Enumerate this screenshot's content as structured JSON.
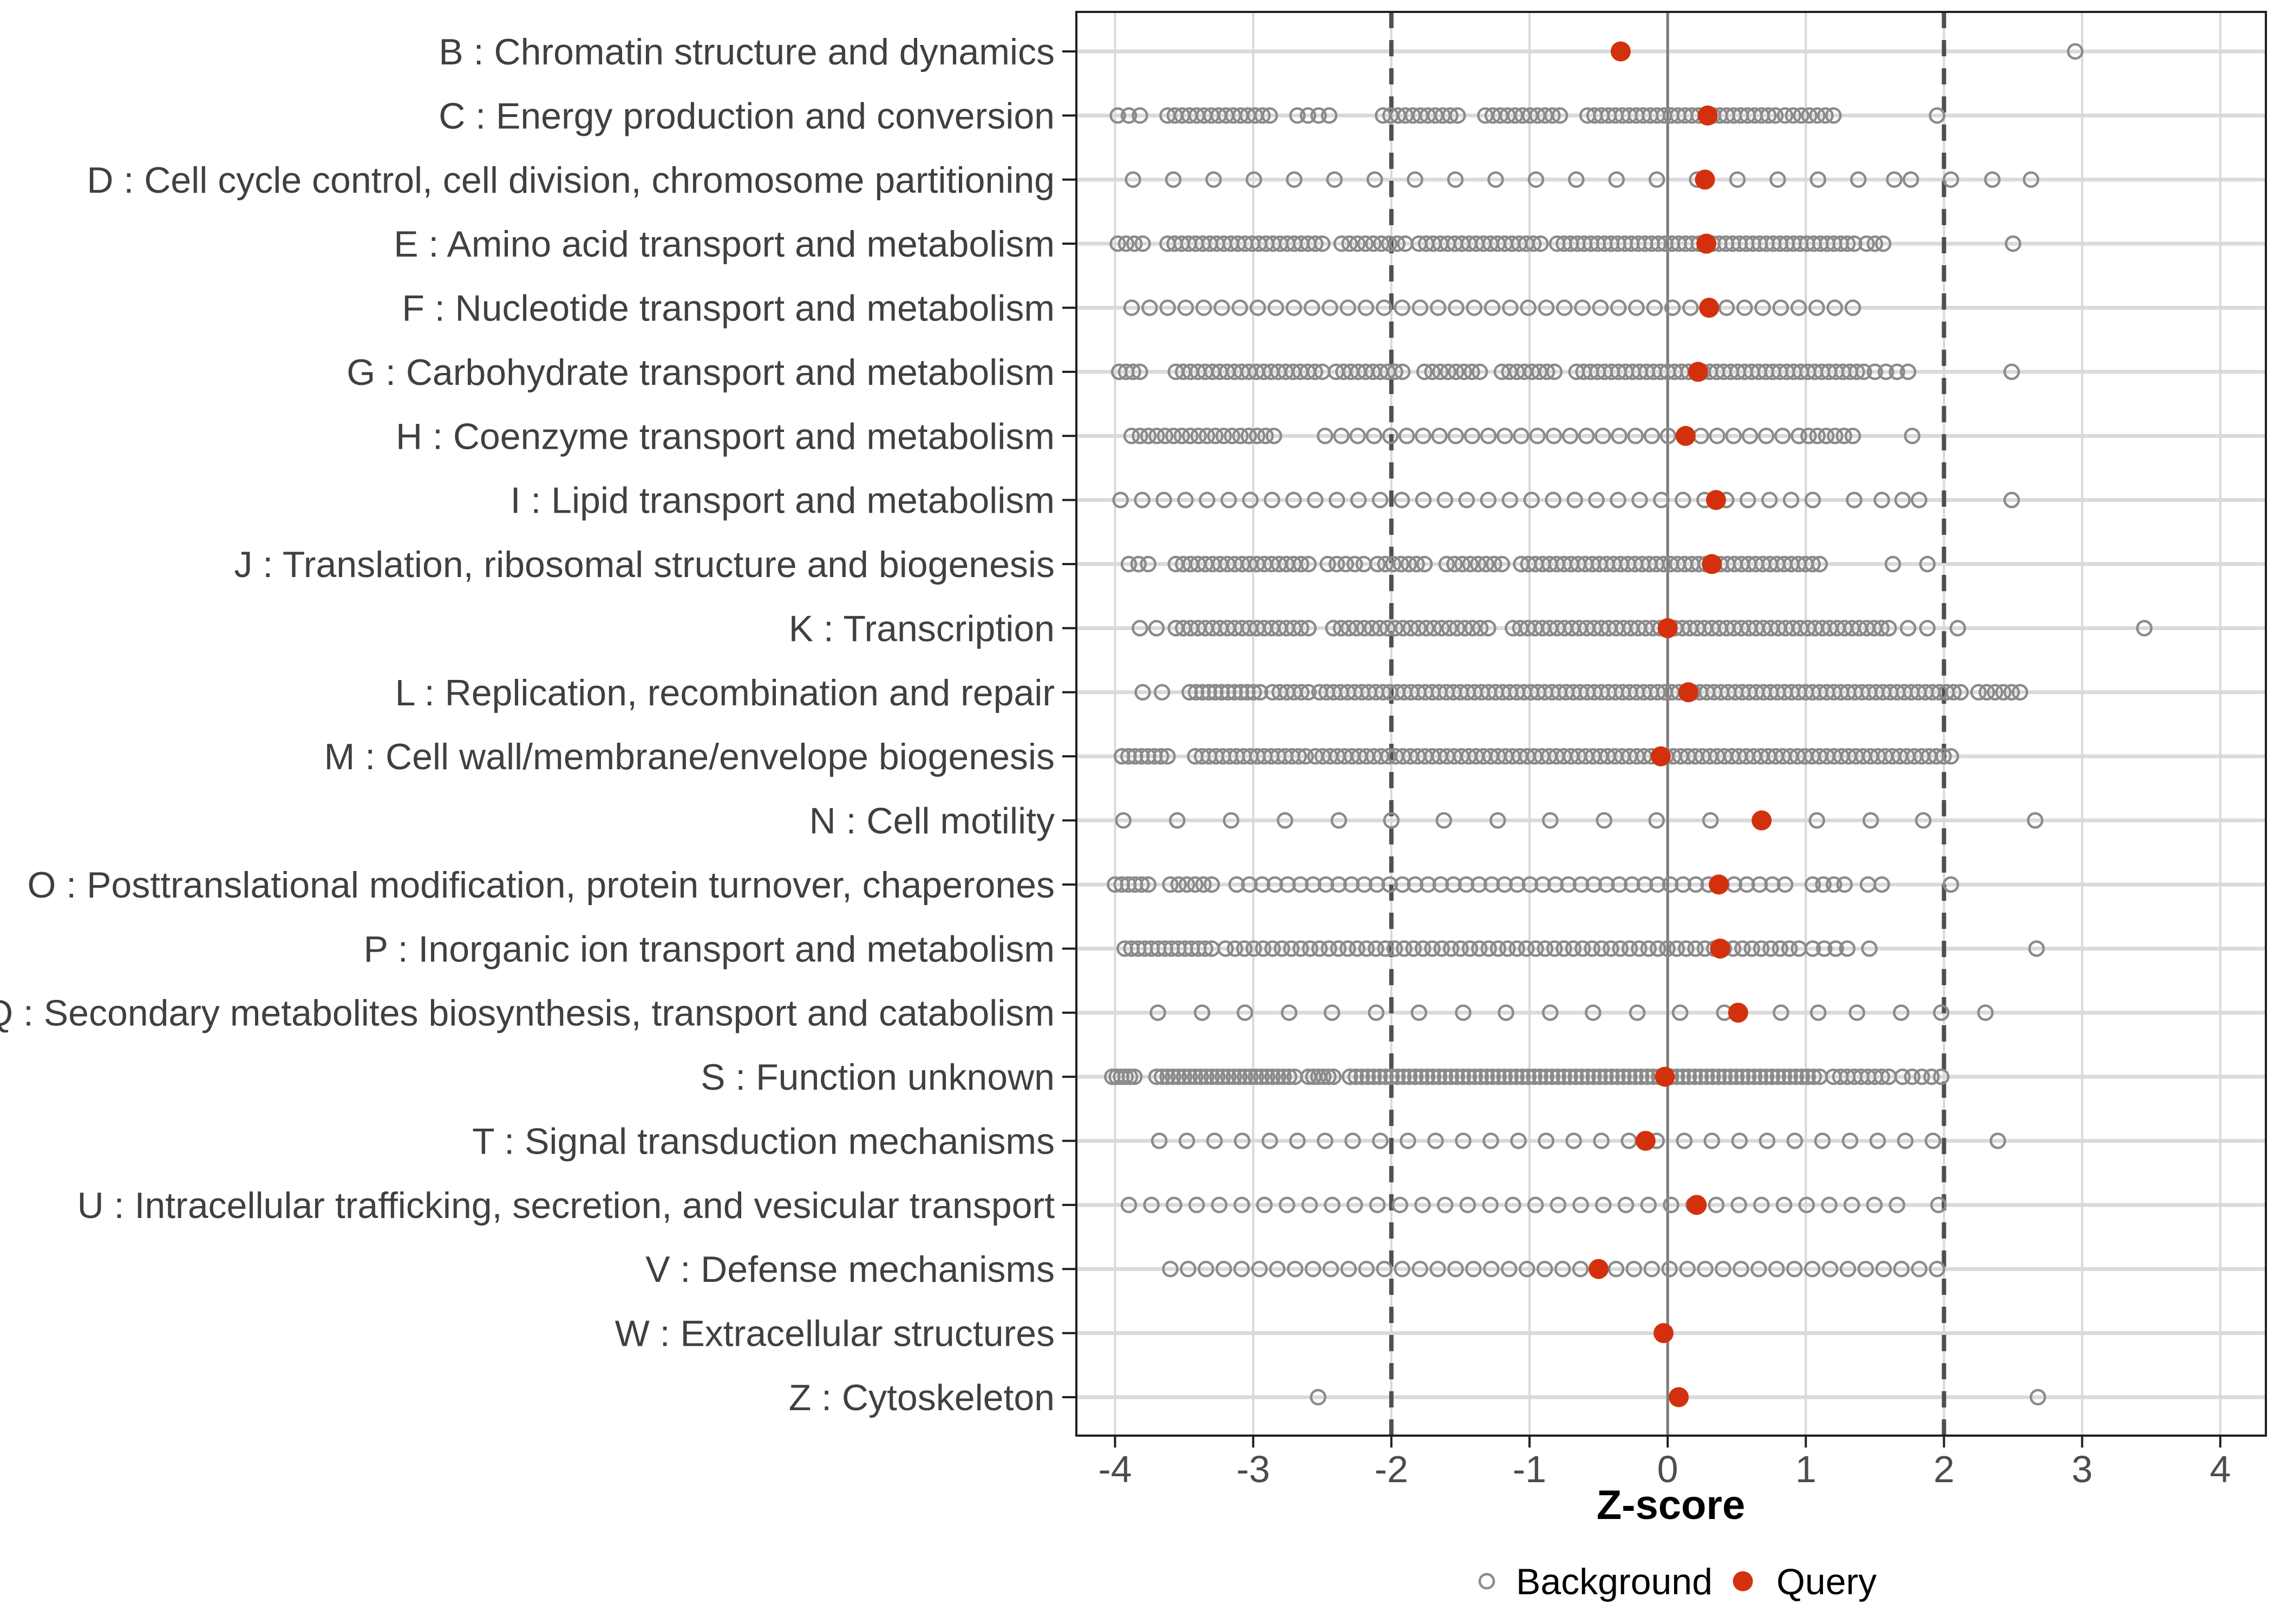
{
  "chart_data": {
    "type": "scatter",
    "title": "",
    "xlabel": "Z-score",
    "x_ticks": [
      -4,
      -3,
      -2,
      -1,
      0,
      1,
      2,
      3,
      4
    ],
    "x_domain": [
      -4.28,
      4.33
    ],
    "grid": true,
    "reference_lines": {
      "zero": 0,
      "dashed": [
        -2,
        2
      ]
    },
    "legend": {
      "background": "Background",
      "query": "Query"
    },
    "legend_position": "bottom",
    "colors": {
      "query": "#d3310d",
      "background_stroke": "#8b8b8b",
      "grid": "#dadada",
      "vgrid": "#d8d8d8",
      "zero_line": "#7a7a7a",
      "dashed_line": "#4f4f4f",
      "panel_border": "#1f1f1f",
      "x_tick_text": "#4d4d4d",
      "y_label_text": "#404040"
    },
    "categories": [
      {
        "label": "B : Chromatin structure and dynamics",
        "query": -0.34,
        "bg_segments": [],
        "bg_points": [
          2.95
        ]
      },
      {
        "label": "C : Energy production and conversion",
        "query": 0.29,
        "bg_segments": [
          [
            -3.98,
            -3.82,
            3
          ],
          [
            -3.62,
            -2.88,
            15
          ],
          [
            -2.68,
            -2.45,
            4
          ],
          [
            -2.06,
            -1.52,
            11
          ],
          [
            -1.32,
            -0.78,
            11
          ],
          [
            -0.58,
            0.78,
            28
          ],
          [
            0.85,
            1.2,
            7
          ]
        ],
        "bg_points": [
          1.95
        ]
      },
      {
        "label": "D : Cell cycle control, cell division, chromosome partitioning",
        "query": 0.27,
        "bg_segments": [
          [
            -3.87,
            1.38,
            19
          ]
        ],
        "bg_points": [
          1.64,
          1.76,
          2.05,
          2.35,
          2.63
        ]
      },
      {
        "label": "E : Amino acid transport and metabolism",
        "query": 0.28,
        "bg_segments": [
          [
            -3.98,
            -3.8,
            4
          ],
          [
            -3.62,
            -2.5,
            23
          ],
          [
            -2.36,
            -1.9,
            9
          ],
          [
            -1.8,
            -0.92,
            18
          ],
          [
            -0.8,
            1.35,
            45
          ],
          [
            1.44,
            1.56,
            3
          ]
        ],
        "bg_points": [
          2.5
        ]
      },
      {
        "label": "F : Nucleotide transport and metabolism",
        "query": 0.3,
        "bg_segments": [
          [
            -3.88,
            1.34,
            41
          ]
        ],
        "bg_points": []
      },
      {
        "label": "G : Carbohydrate transport and metabolism",
        "query": 0.22,
        "bg_segments": [
          [
            -3.97,
            -3.82,
            4
          ],
          [
            -3.56,
            -2.5,
            21
          ],
          [
            -2.4,
            -1.92,
            10
          ],
          [
            -1.76,
            -1.36,
            8
          ],
          [
            -1.2,
            -0.82,
            8
          ],
          [
            -0.66,
            1.42,
            42
          ],
          [
            1.5,
            1.74,
            4
          ]
        ],
        "bg_points": [
          2.49
        ]
      },
      {
        "label": "H : Coenzyme transport and metabolism",
        "query": 0.13,
        "bg_segments": [
          [
            -3.88,
            -2.85,
            18
          ],
          [
            -2.48,
            0.95,
            30
          ],
          [
            1.02,
            1.34,
            6
          ]
        ],
        "bg_points": [
          1.77
        ]
      },
      {
        "label": "I : Lipid transport and metabolism",
        "query": 0.35,
        "bg_segments": [
          [
            -3.96,
            1.05,
            33
          ]
        ],
        "bg_points": [
          1.35,
          1.55,
          1.7,
          1.82,
          2.49
        ]
      },
      {
        "label": "J : Translation, ribosomal structure and biogenesis",
        "query": 0.32,
        "bg_segments": [
          [
            -3.9,
            -3.76,
            3
          ],
          [
            -3.56,
            -2.6,
            19
          ],
          [
            -2.46,
            -2.2,
            5
          ],
          [
            -2.1,
            -1.76,
            7
          ],
          [
            -1.6,
            -1.2,
            8
          ],
          [
            -1.06,
            1.1,
            43
          ]
        ],
        "bg_points": [
          1.63,
          1.88
        ]
      },
      {
        "label": "K : Transcription",
        "query": 0.0,
        "bg_segments": [
          [
            -3.82,
            -3.7,
            2
          ],
          [
            -3.56,
            -2.6,
            19
          ],
          [
            -2.42,
            -1.3,
            21
          ],
          [
            -1.12,
            1.6,
            52
          ]
        ],
        "bg_points": [
          1.74,
          1.88,
          2.1,
          3.45
        ]
      },
      {
        "label": "L : Replication, recombination and repair",
        "query": 0.15,
        "bg_segments": [
          [
            -3.8,
            -3.66,
            2
          ],
          [
            -3.46,
            -2.95,
            12
          ],
          [
            -2.86,
            -2.6,
            6
          ],
          [
            -2.52,
            2.12,
            92
          ],
          [
            2.25,
            2.55,
            6
          ]
        ],
        "bg_points": []
      },
      {
        "label": "M : Cell wall/membrane/envelope biogenesis",
        "query": -0.05,
        "bg_segments": [
          [
            -3.95,
            -3.62,
            8
          ],
          [
            -3.42,
            -2.62,
            17
          ],
          [
            -2.55,
            2.05,
            88
          ]
        ],
        "bg_points": []
      },
      {
        "label": "N : Cell motility",
        "query": 0.68,
        "bg_segments": [],
        "bg_points": [
          -3.94,
          -3.55,
          -3.16,
          -2.77,
          -2.38,
          -2.0,
          -1.62,
          -1.23,
          -0.85,
          -0.46,
          -0.08,
          0.31,
          1.08,
          1.47,
          1.85,
          2.66
        ]
      },
      {
        "label": "O : Posttranslational modification, protein turnover, chaperones",
        "query": 0.37,
        "bg_segments": [
          [
            -4.0,
            -3.76,
            6
          ],
          [
            -3.6,
            -3.3,
            6
          ],
          [
            -3.12,
            0.85,
            44
          ],
          [
            1.05,
            1.28,
            4
          ],
          [
            1.45,
            1.55,
            2
          ]
        ],
        "bg_points": [
          2.05
        ]
      },
      {
        "label": "P : Inorganic ion transport and metabolism",
        "query": 0.38,
        "bg_segments": [
          [
            -3.93,
            -3.3,
            14
          ],
          [
            -3.2,
            0.95,
            62
          ],
          [
            1.05,
            1.3,
            4
          ]
        ],
        "bg_points": [
          1.46,
          2.67
        ]
      },
      {
        "label": "Q : Secondary metabolites biosynthesis, transport and catabolism",
        "query": 0.51,
        "bg_segments": [],
        "bg_points": [
          -3.69,
          -3.37,
          -3.06,
          -2.74,
          -2.43,
          -2.11,
          -1.8,
          -1.48,
          -1.17,
          -0.85,
          -0.54,
          -0.22,
          0.09,
          0.41,
          0.82,
          1.09,
          1.37,
          1.69,
          1.98,
          2.3
        ]
      },
      {
        "label": "S : Function unknown",
        "query": -0.02,
        "bg_segments": [
          [
            -4.02,
            -3.86,
            6
          ],
          [
            -3.7,
            -2.7,
            26
          ],
          [
            -2.6,
            -2.42,
            6
          ],
          [
            -2.3,
            1.1,
            80
          ],
          [
            1.2,
            1.6,
            9
          ],
          [
            1.7,
            1.98,
            5
          ]
        ],
        "bg_points": []
      },
      {
        "label": "T : Signal transduction mechanisms",
        "query": -0.16,
        "bg_segments": [
          [
            -3.68,
            1.92,
            29
          ]
        ],
        "bg_points": [
          2.39
        ]
      },
      {
        "label": "U : Intracellular trafficking, secretion, and vesicular transport",
        "query": 0.21,
        "bg_segments": [
          [
            -3.9,
            1.66,
            35
          ]
        ],
        "bg_points": [
          1.96
        ]
      },
      {
        "label": "V : Defense mechanisms",
        "query": -0.5,
        "bg_segments": [
          [
            -3.6,
            1.95,
            44
          ]
        ],
        "bg_points": []
      },
      {
        "label": "W : Extracellular structures",
        "query": -0.03,
        "bg_segments": [],
        "bg_points": []
      },
      {
        "label": "Z : Cytoskeleton",
        "query": 0.08,
        "bg_segments": [],
        "bg_points": [
          -2.53,
          2.68
        ]
      }
    ]
  }
}
